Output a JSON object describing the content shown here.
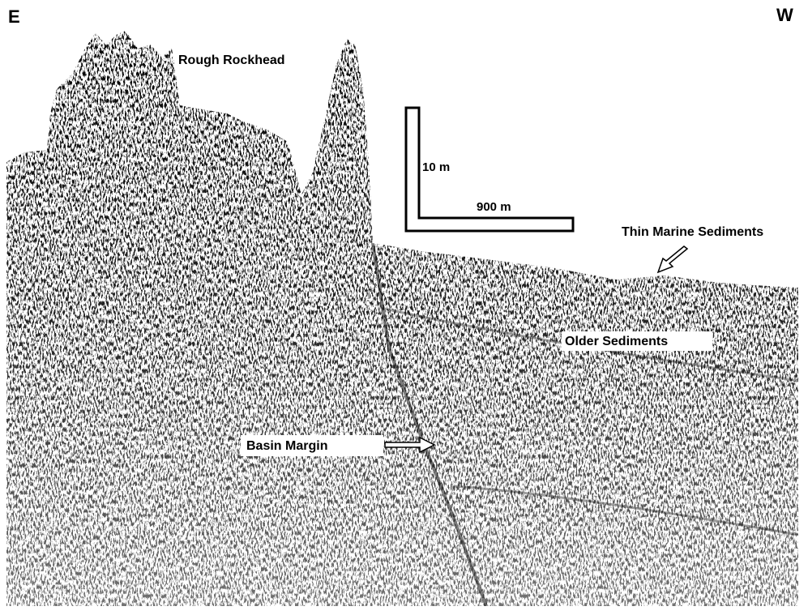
{
  "header": {
    "left": "E",
    "right": "W"
  },
  "scale_bar": {
    "vertical": "10 m",
    "horizontal": "900 m"
  },
  "annotations": {
    "rough_rockhead": "Rough Rockhead",
    "thin_marine_sediments": "Thin Marine Sediments",
    "older_sediments": "Older Sediments",
    "basin_margin": "Basin Margin"
  }
}
